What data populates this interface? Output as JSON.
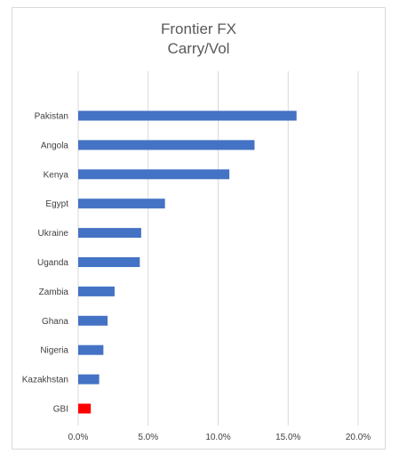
{
  "chart_data": {
    "type": "bar",
    "orientation": "horizontal",
    "title": "Frontier FX",
    "subtitle": "Carry/Vol",
    "categories": [
      "Pakistan",
      "Angola",
      "Kenya",
      "Egypt",
      "Ukraine",
      "Uganda",
      "Zambia",
      "Ghana",
      "Nigeria",
      "Kazakhstan",
      "GBI"
    ],
    "values": [
      15.6,
      12.6,
      10.8,
      6.2,
      4.5,
      4.4,
      2.6,
      2.1,
      1.8,
      1.5,
      0.9
    ],
    "bar_colors": [
      "#4472c4",
      "#4472c4",
      "#4472c4",
      "#4472c4",
      "#4472c4",
      "#4472c4",
      "#4472c4",
      "#4472c4",
      "#4472c4",
      "#4472c4",
      "#ff0000"
    ],
    "xlim": [
      0,
      20
    ],
    "xticks": [
      "0.0%",
      "5.0%",
      "10.0%",
      "15.0%",
      "20.0%"
    ],
    "grid": true,
    "legend": "none"
  }
}
